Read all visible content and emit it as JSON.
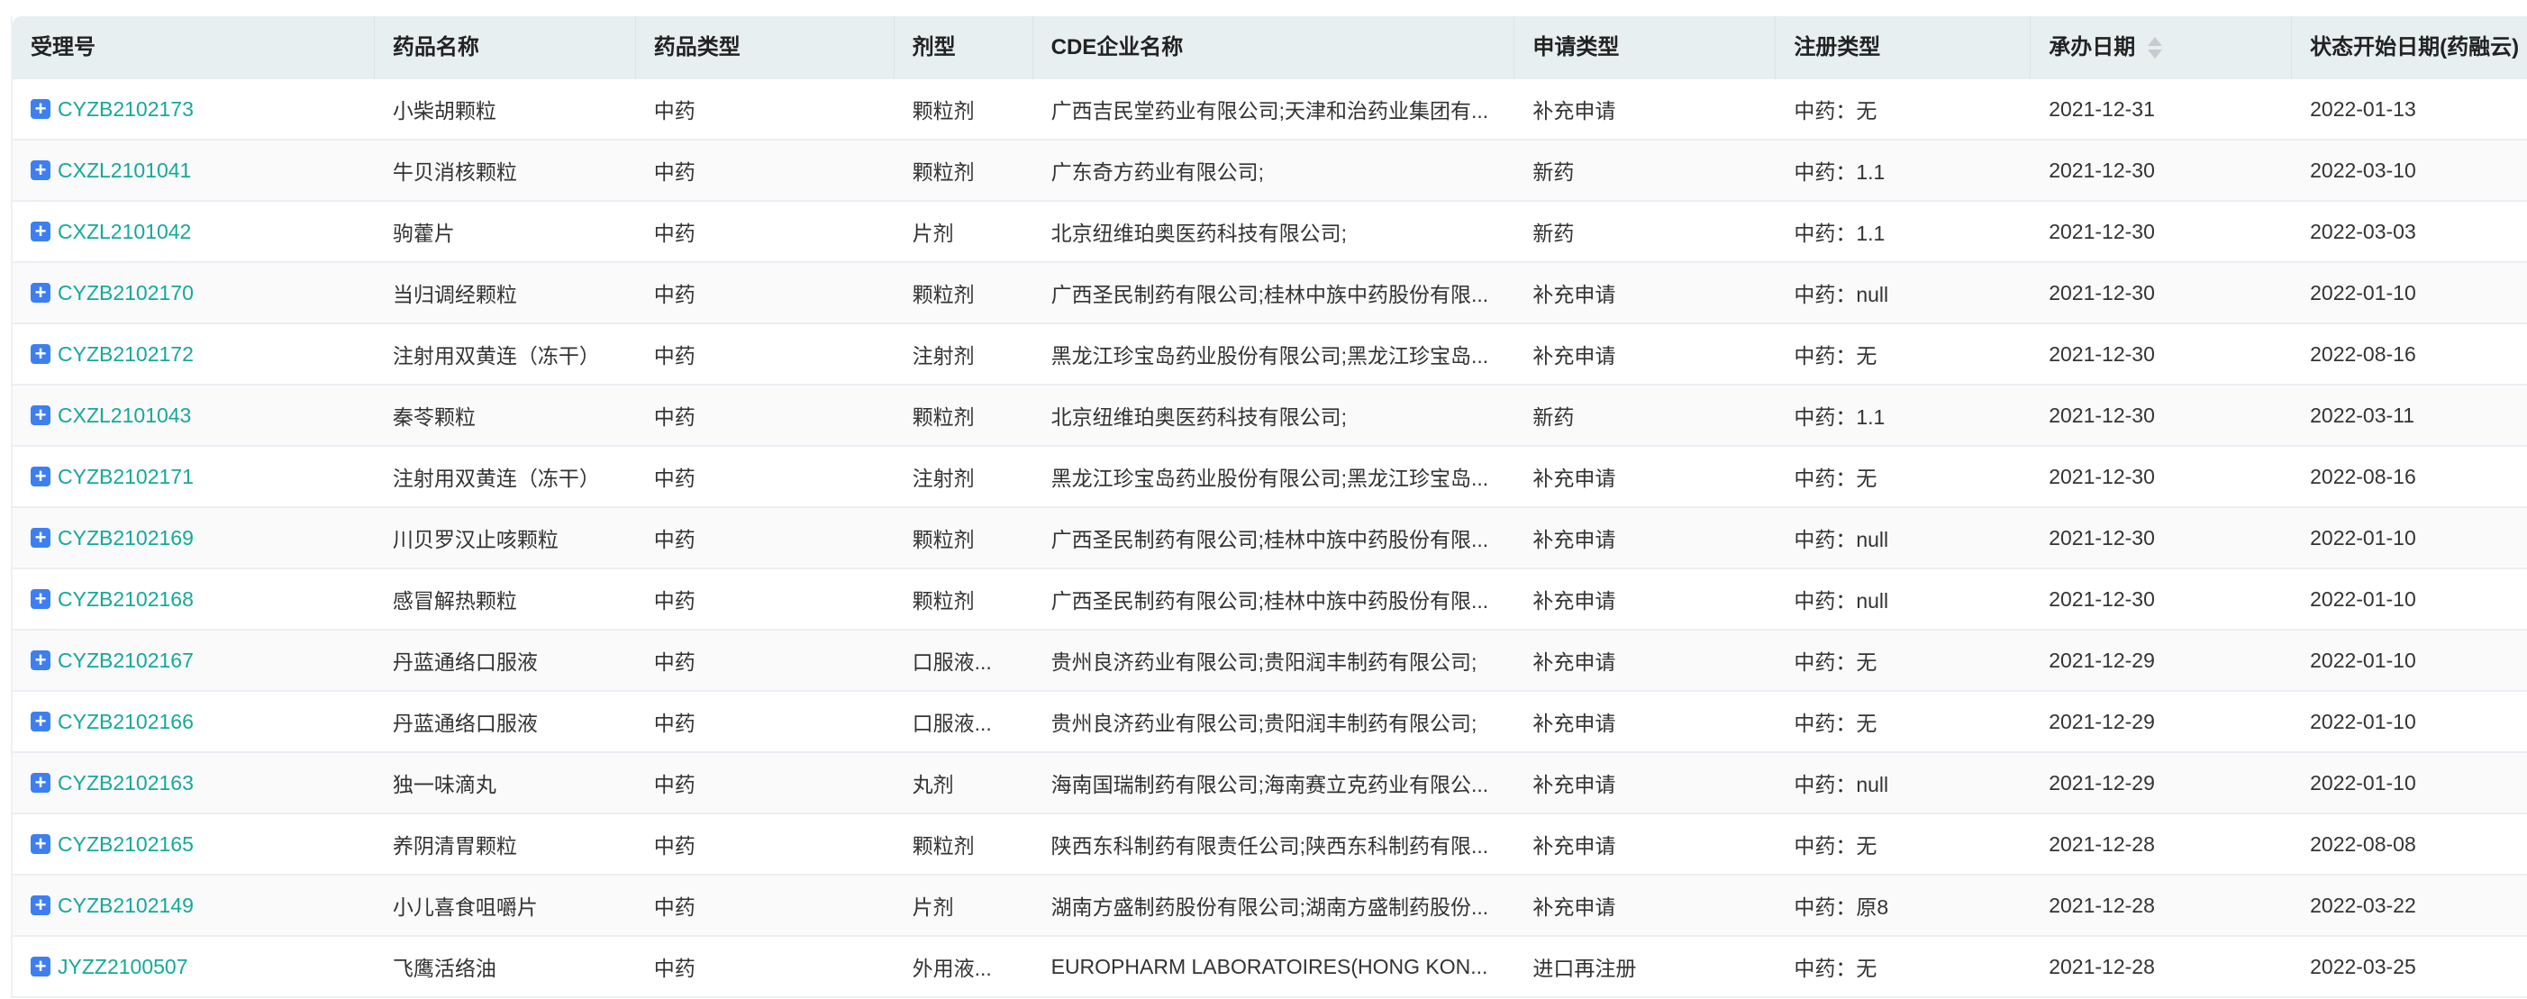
{
  "columns": [
    "受理号",
    "药品名称",
    "药品类型",
    "剂型",
    "CDE企业名称",
    "申请类型",
    "注册类型",
    "承办日期",
    "状态开始日期(药融云)"
  ],
  "sort_column_icon": "sort-icon",
  "expand_icon": "plus-square-icon",
  "colors": {
    "link": "#14a99a",
    "expand": "#3d7ff2",
    "header_bg": "#e7eff0"
  },
  "rows": [
    [
      "CYZB2102173",
      "小柴胡颗粒",
      "中药",
      "颗粒剂",
      "广西吉民堂药业有限公司;天津和治药业集团有...",
      "补充申请",
      "中药：无",
      "2021-12-31",
      "2022-01-13"
    ],
    [
      "CXZL2101041",
      "牛贝消核颗粒",
      "中药",
      "颗粒剂",
      "广东奇方药业有限公司;",
      "新药",
      "中药：1.1",
      "2021-12-30",
      "2022-03-10"
    ],
    [
      "CXZL2101042",
      "驹藿片",
      "中药",
      "片剂",
      "北京纽维珀奥医药科技有限公司;",
      "新药",
      "中药：1.1",
      "2021-12-30",
      "2022-03-03"
    ],
    [
      "CYZB2102170",
      "当归调经颗粒",
      "中药",
      "颗粒剂",
      "广西圣民制药有限公司;桂林中族中药股份有限...",
      "补充申请",
      "中药：null",
      "2021-12-30",
      "2022-01-10"
    ],
    [
      "CYZB2102172",
      "注射用双黄连（冻干）",
      "中药",
      "注射剂",
      "黑龙江珍宝岛药业股份有限公司;黑龙江珍宝岛...",
      "补充申请",
      "中药：无",
      "2021-12-30",
      "2022-08-16"
    ],
    [
      "CXZL2101043",
      "秦苓颗粒",
      "中药",
      "颗粒剂",
      "北京纽维珀奥医药科技有限公司;",
      "新药",
      "中药：1.1",
      "2021-12-30",
      "2022-03-11"
    ],
    [
      "CYZB2102171",
      "注射用双黄连（冻干）",
      "中药",
      "注射剂",
      "黑龙江珍宝岛药业股份有限公司;黑龙江珍宝岛...",
      "补充申请",
      "中药：无",
      "2021-12-30",
      "2022-08-16"
    ],
    [
      "CYZB2102169",
      "川贝罗汉止咳颗粒",
      "中药",
      "颗粒剂",
      "广西圣民制药有限公司;桂林中族中药股份有限...",
      "补充申请",
      "中药：null",
      "2021-12-30",
      "2022-01-10"
    ],
    [
      "CYZB2102168",
      "感冒解热颗粒",
      "中药",
      "颗粒剂",
      "广西圣民制药有限公司;桂林中族中药股份有限...",
      "补充申请",
      "中药：null",
      "2021-12-30",
      "2022-01-10"
    ],
    [
      "CYZB2102167",
      "丹蓝通络口服液",
      "中药",
      "口服液...",
      "贵州良济药业有限公司;贵阳润丰制药有限公司;",
      "补充申请",
      "中药：无",
      "2021-12-29",
      "2022-01-10"
    ],
    [
      "CYZB2102166",
      "丹蓝通络口服液",
      "中药",
      "口服液...",
      "贵州良济药业有限公司;贵阳润丰制药有限公司;",
      "补充申请",
      "中药：无",
      "2021-12-29",
      "2022-01-10"
    ],
    [
      "CYZB2102163",
      "独一味滴丸",
      "中药",
      "丸剂",
      "海南国瑞制药有限公司;海南赛立克药业有限公...",
      "补充申请",
      "中药：null",
      "2021-12-29",
      "2022-01-10"
    ],
    [
      "CYZB2102165",
      "养阴清胃颗粒",
      "中药",
      "颗粒剂",
      "陕西东科制药有限责任公司;陕西东科制药有限...",
      "补充申请",
      "中药：无",
      "2021-12-28",
      "2022-08-08"
    ],
    [
      "CYZB2102149",
      "小儿喜食咀嚼片",
      "中药",
      "片剂",
      "湖南方盛制药股份有限公司;湖南方盛制药股份...",
      "补充申请",
      "中药：原8",
      "2021-12-28",
      "2022-03-22"
    ],
    [
      "JYZZ2100507",
      "飞鹰活络油",
      "中药",
      "外用液...",
      "EUROPHARM LABORATOIRES(HONG KON...",
      "进口再注册",
      "中药：无",
      "2021-12-28",
      "2022-03-25"
    ]
  ]
}
